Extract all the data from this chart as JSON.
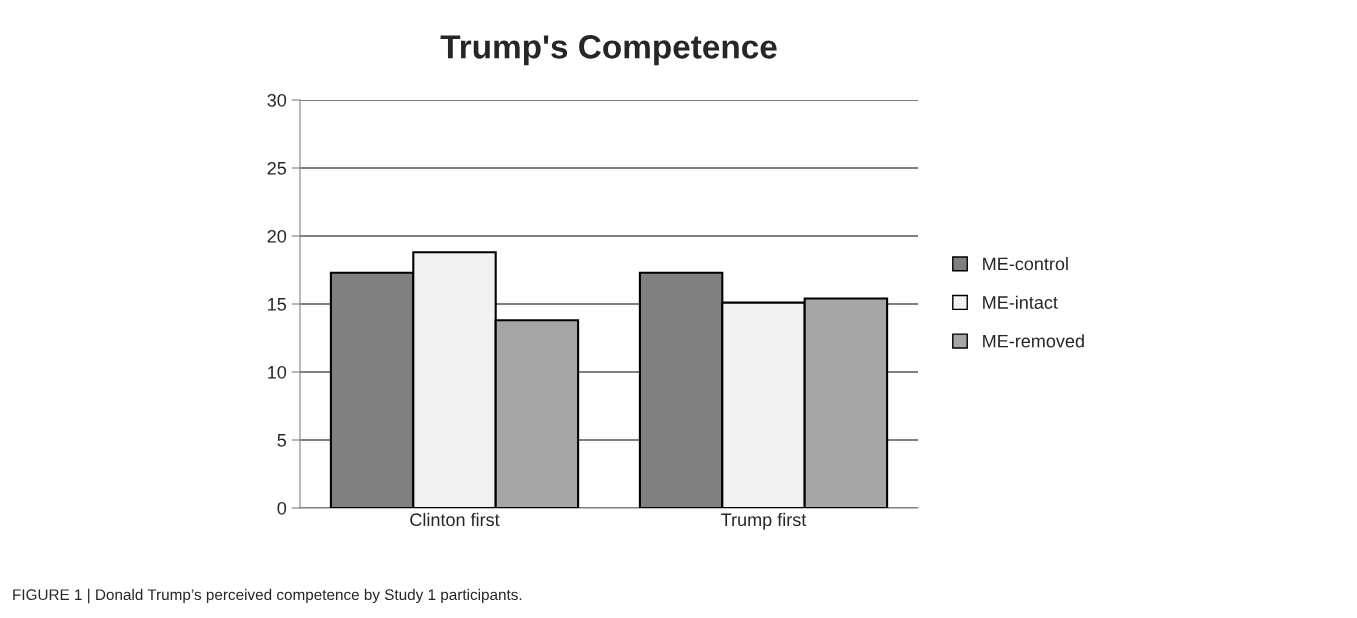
{
  "chart_data": {
    "type": "bar",
    "title": "Trump's Competence",
    "categories": [
      "Clinton first",
      "Trump first"
    ],
    "series": [
      {
        "name": "ME-control",
        "color": "#808080",
        "values": [
          17.3,
          17.3
        ]
      },
      {
        "name": "ME-intact",
        "color": "#f2f2f2",
        "values": [
          18.8,
          15.1
        ]
      },
      {
        "name": "ME-removed",
        "color": "#a6a6a6",
        "values": [
          13.8,
          15.4
        ]
      }
    ],
    "ylim": [
      0,
      30
    ],
    "yticks": [
      0,
      5,
      10,
      15,
      20,
      25,
      30
    ],
    "grid": "y",
    "legend": "right",
    "annotations": [
      "FIGURE 1 | Donald Trump’s perceived competence by Study 1 participants."
    ]
  }
}
